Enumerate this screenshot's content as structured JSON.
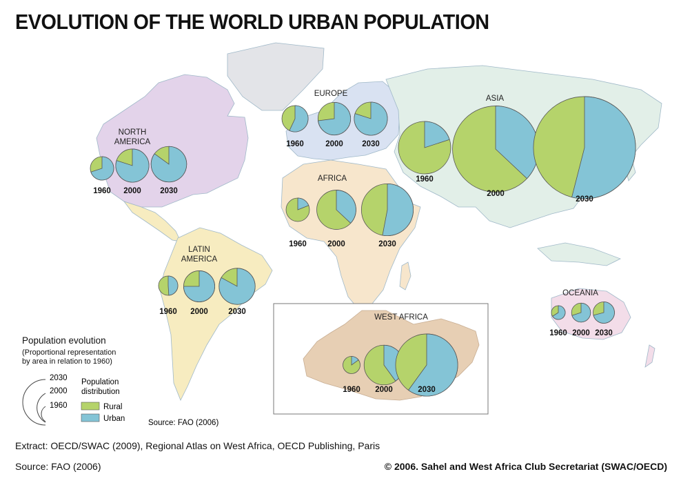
{
  "title": "EVOLUTION OF THE WORLD URBAN POPULATION",
  "colors": {
    "rural": "#b5d36b",
    "urban": "#84c4d6"
  },
  "regions": [
    {
      "id": "north-america",
      "label": [
        "NORTH",
        "AMERICA"
      ],
      "pies": [
        {
          "year": "1960",
          "urban_share": 0.7,
          "area": 1
        },
        {
          "year": "2000",
          "urban_share": 0.8,
          "area": 2.0
        },
        {
          "year": "2030",
          "urban_share": 0.85,
          "area": 2.3
        }
      ]
    },
    {
      "id": "europe",
      "label": [
        "EUROPE"
      ],
      "pies": [
        {
          "year": "1960",
          "urban_share": 0.57,
          "area": 1
        },
        {
          "year": "2000",
          "urban_share": 0.73,
          "area": 1.55
        },
        {
          "year": "2030",
          "urban_share": 0.8,
          "area": 1.6
        }
      ]
    },
    {
      "id": "asia",
      "label": [
        "ASIA"
      ],
      "pies": [
        {
          "year": "1960",
          "urban_share": 0.2,
          "area": 1
        },
        {
          "year": "2000",
          "urban_share": 0.37,
          "area": 2.7
        },
        {
          "year": "2030",
          "urban_share": 0.54,
          "area": 3.8
        }
      ]
    },
    {
      "id": "africa",
      "label": [
        "AFRICA"
      ],
      "pies": [
        {
          "year": "1960",
          "urban_share": 0.19,
          "area": 1
        },
        {
          "year": "2000",
          "urban_share": 0.37,
          "area": 2.8
        },
        {
          "year": "2030",
          "urban_share": 0.53,
          "area": 4.9
        }
      ]
    },
    {
      "id": "latin-america",
      "label": [
        "LATIN",
        "AMERICA"
      ],
      "pies": [
        {
          "year": "1960",
          "urban_share": 0.49,
          "area": 1
        },
        {
          "year": "2000",
          "urban_share": 0.75,
          "area": 2.6
        },
        {
          "year": "2030",
          "urban_share": 0.83,
          "area": 3.5
        }
      ]
    },
    {
      "id": "oceania",
      "label": [
        "OCEANIA"
      ],
      "pies": [
        {
          "year": "1960",
          "urban_share": 0.66,
          "area": 1
        },
        {
          "year": "2000",
          "urban_share": 0.7,
          "area": 1.9
        },
        {
          "year": "2030",
          "urban_share": 0.71,
          "area": 2.4
        }
      ]
    },
    {
      "id": "west-africa",
      "label": [
        "WEST AFRICA"
      ],
      "pies": [
        {
          "year": "1960",
          "urban_share": 0.15,
          "area": 1
        },
        {
          "year": "2000",
          "urban_share": 0.4,
          "area": 5.3
        },
        {
          "year": "2030",
          "urban_share": 0.6,
          "area": 13
        }
      ]
    }
  ],
  "legend": {
    "title": "Population evolution",
    "subtitle": [
      "(Proportional representation",
      "by area in relation to 1960)"
    ],
    "scale_years": [
      "2030",
      "2000",
      "1960"
    ],
    "distribution_title": [
      "Population",
      "distribution"
    ],
    "rural_label": "Rural",
    "urban_label": "Urban",
    "source": "Source: FAO (2006)"
  },
  "footer": {
    "extract": "Extract: OECD/SWAC (2009), Regional Atlas on West Africa, OECD Publishing, Paris",
    "source": "Source: FAO (2006)",
    "copyright": "© 2006. Sahel and West Africa Club Secretariat (SWAC/OECD)"
  }
}
